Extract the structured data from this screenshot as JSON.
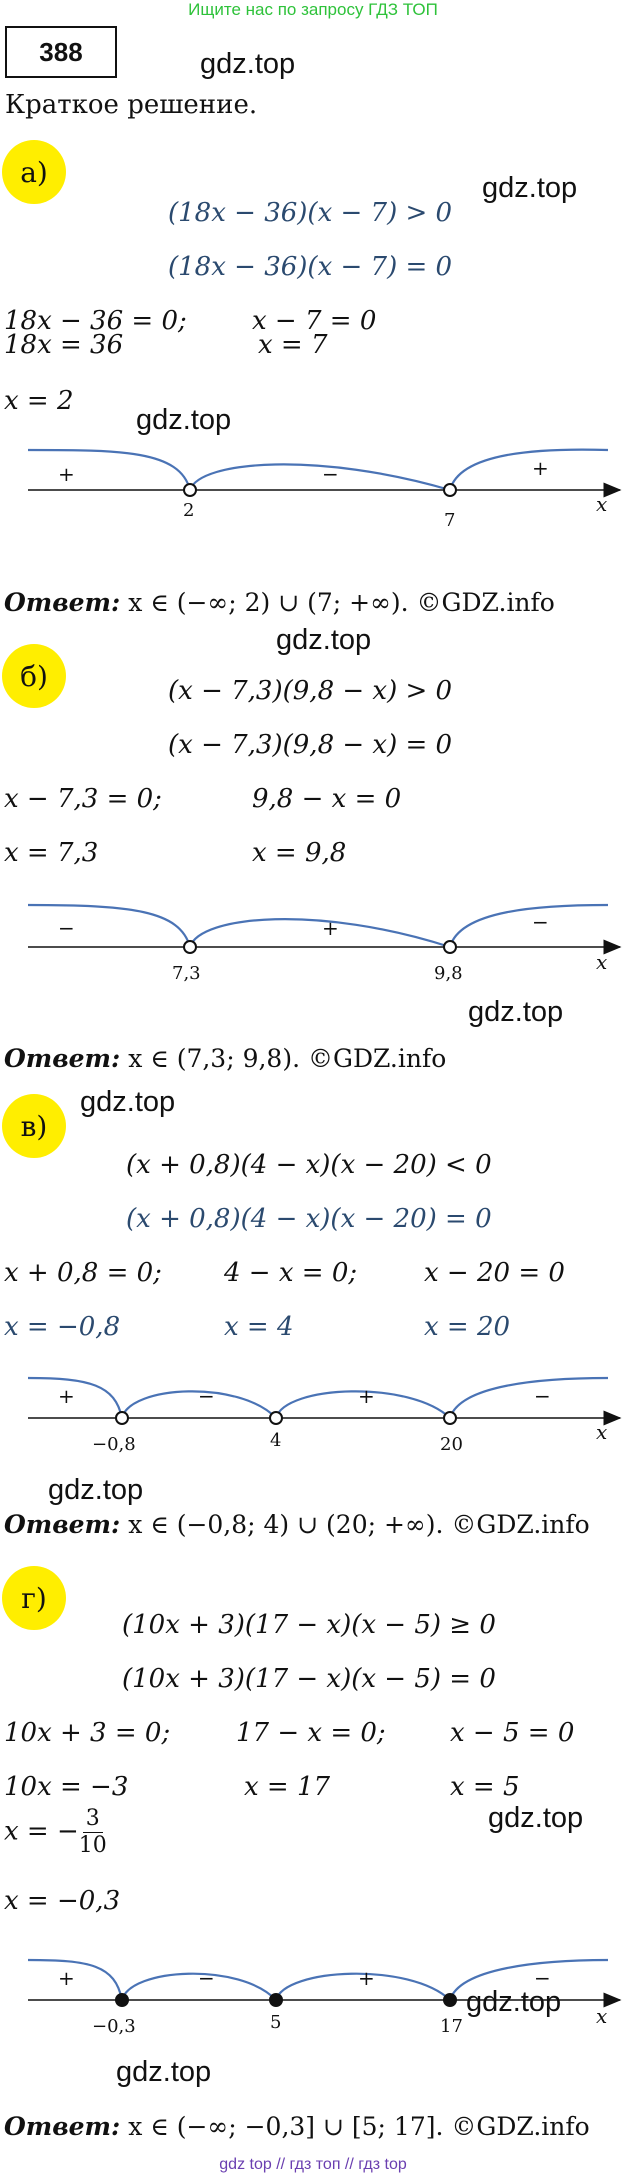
{
  "top_banner": "Ищите нас по запросу ГДЗ ТОП",
  "task_number": "388",
  "watermark": "gdz.top",
  "heading": "Краткое решение.",
  "answer_label": "Ответ:",
  "axis_var": "x",
  "parts": {
    "a": {
      "label": "а)",
      "ineq": "(18x − 36)(x − 7) > 0",
      "eq": "(18x − 36)(x − 7) = 0",
      "s1": "18x − 36 = 0;",
      "s2": "x − 7 = 0",
      "s3": "18x = 36",
      "s4": "x = 7",
      "s5": "x = 2",
      "ticks": [
        "2",
        "7"
      ],
      "signs": [
        "+",
        "−",
        "+"
      ],
      "answer": "x ∈ (−∞; 2) ∪ (7; +∞). ©GDZ.info"
    },
    "b": {
      "label": "б)",
      "ineq": "(x − 7,3)(9,8 − x) > 0",
      "eq": "(x − 7,3)(9,8 − x) = 0",
      "s1": "x − 7,3 = 0;",
      "s2": "9,8 − x = 0",
      "s3": "x = 7,3",
      "s4": "x = 9,8",
      "ticks": [
        "7,3",
        "9,8"
      ],
      "signs": [
        "−",
        "+",
        "−"
      ],
      "answer": "x ∈ (7,3; 9,8). ©GDZ.info"
    },
    "c": {
      "label": "в)",
      "ineq": "(x + 0,8)(4 − x)(x − 20) < 0",
      "eq": "(x + 0,8)(4 − x)(x − 20) = 0",
      "s1": "x + 0,8 = 0;",
      "s2": "4 − x = 0;",
      "s3": "x − 20 = 0",
      "s4": "x = −0,8",
      "s5": "x = 4",
      "s6": "x = 20",
      "ticks": [
        "−0,8",
        "4",
        "20"
      ],
      "signs": [
        "+",
        "−",
        "+",
        "−"
      ],
      "answer": "x ∈ (−0,8; 4) ∪ (20; +∞). ©GDZ.info"
    },
    "d": {
      "label": "г)",
      "ineq": "(10x + 3)(17 − x)(x − 5) ≥ 0",
      "eq": "(10x + 3)(17 − x)(x − 5) = 0",
      "s1": "10x + 3 = 0;",
      "s2": "17 − x = 0;",
      "s3": "x − 5 = 0",
      "s4": "10x = −3",
      "s5": "x = 17",
      "s6": "x = 5",
      "s7_prefix": "x = −",
      "s7_num": "3",
      "s7_den": "10",
      "s8": "x = −0,3",
      "ticks": [
        "−0,3",
        "5",
        "17"
      ],
      "signs": [
        "+",
        "−",
        "+",
        "−"
      ],
      "answer": "x ∈ (−∞; −0,3] ∪ [5; 17]. ©GDZ.info"
    }
  },
  "footer": "gdz top // гдз топ // гдз top",
  "colors": {
    "curve": "#4a73b5",
    "highlight": "#ffee00",
    "banner": "#2ec23a",
    "footer": "#6a3fb0"
  }
}
